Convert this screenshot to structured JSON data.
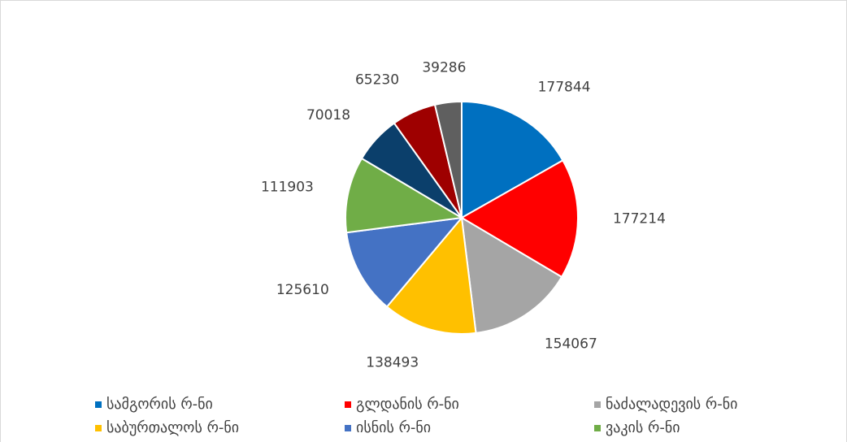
{
  "chart_data": {
    "type": "pie",
    "categories": [
      "სამგორის რ-ნი",
      "გლდანის რ-ნი",
      "ნაძალადევის რ-ნი",
      "საბურთალოს რ-ნი",
      "ისნის რ-ნი",
      "ვაკის რ-ნი",
      null,
      null,
      null
    ],
    "values": [
      177844,
      177214,
      154067,
      138493,
      125610,
      111903,
      70018,
      65230,
      39286
    ],
    "colors": [
      "#0070c0",
      "#ff0000",
      "#a5a5a5",
      "#ffc000",
      "#4472c4",
      "#70ad47",
      "#0b3f6b",
      "#9e0000",
      "#5f5f5f"
    ],
    "legend": "bottom"
  }
}
